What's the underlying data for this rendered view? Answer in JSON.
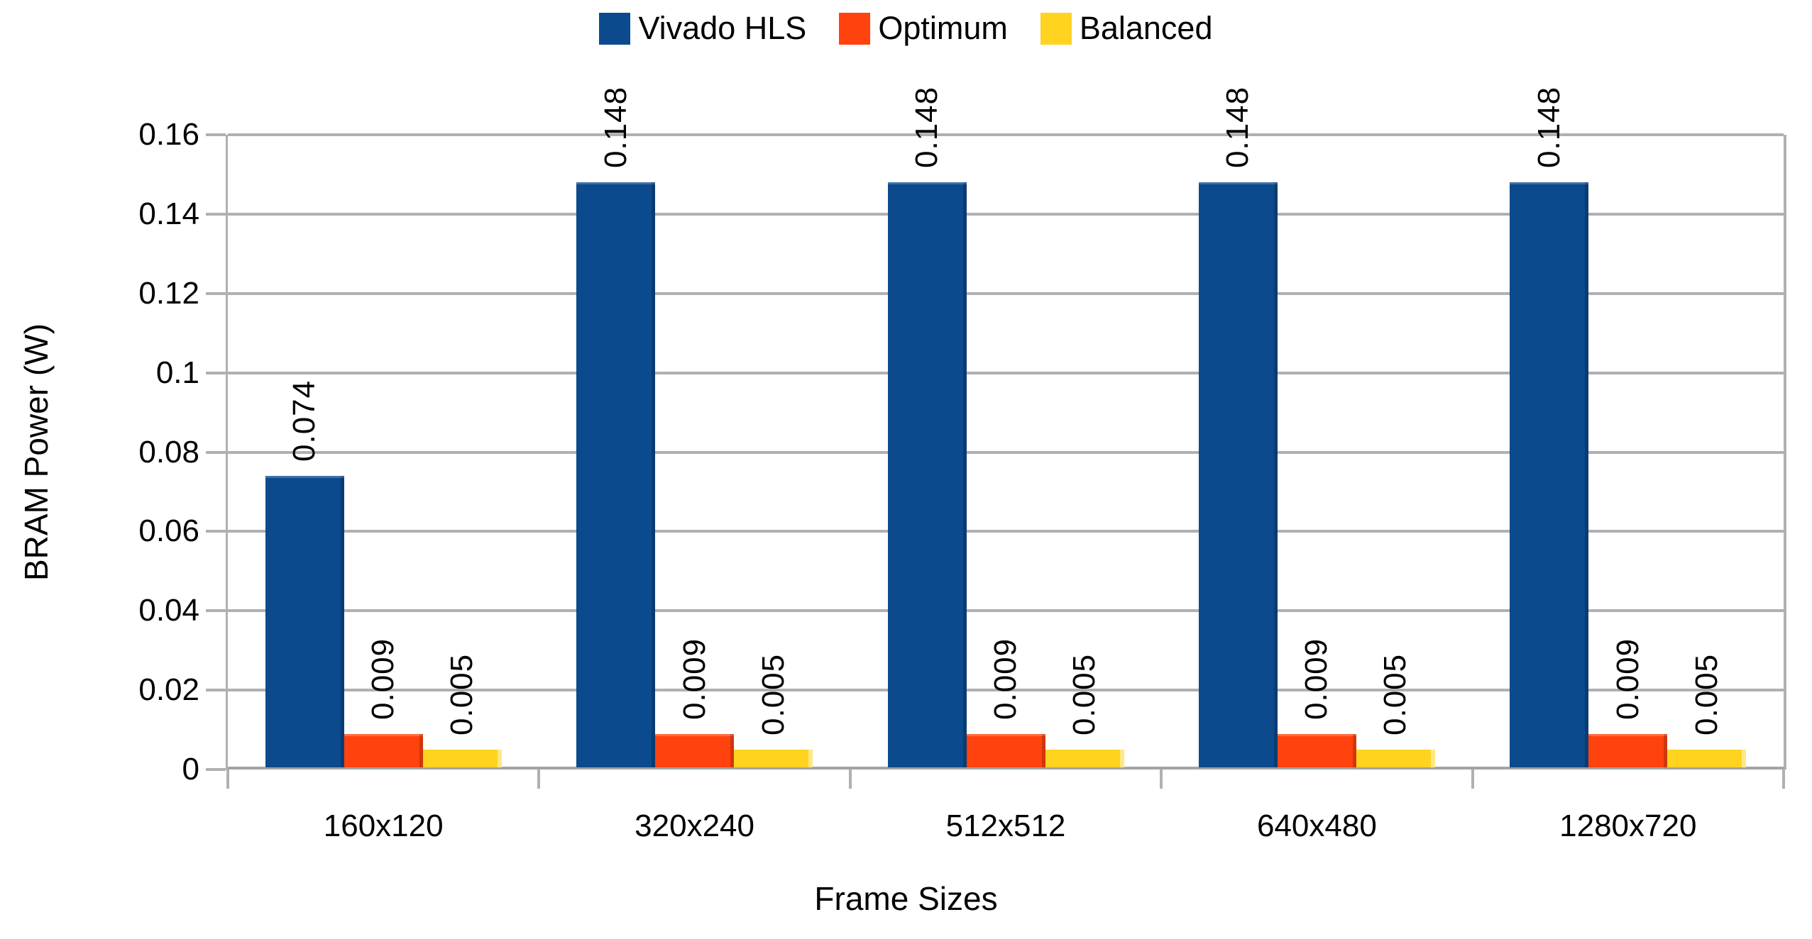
{
  "chart_data": {
    "type": "bar",
    "title": "",
    "categories": [
      "160x120",
      "320x240",
      "512x512",
      "640x480",
      "1280x720"
    ],
    "series": [
      {
        "name": "Vivado HLS",
        "color": "#0b4a8d",
        "values": [
          0.074,
          0.148,
          0.148,
          0.148,
          0.148
        ],
        "labels": [
          "0.074",
          "0.148",
          "0.148",
          "0.148",
          "0.148"
        ]
      },
      {
        "name": "Optimum",
        "color": "#ff420e",
        "values": [
          0.009,
          0.009,
          0.009,
          0.009,
          0.009
        ],
        "labels": [
          "0.009",
          "0.009",
          "0.009",
          "0.009",
          "0.009"
        ]
      },
      {
        "name": "Balanced",
        "color": "#ffd320",
        "values": [
          0.005,
          0.005,
          0.005,
          0.005,
          0.005
        ],
        "labels": [
          "0.005",
          "0.005",
          "0.005",
          "0.005",
          "0.005"
        ]
      }
    ],
    "xlabel": "Frame Sizes",
    "ylabel": "BRAM Power (W)",
    "ylim": [
      0,
      0.16
    ],
    "ytick_step": 0.02,
    "yticks": [
      "0",
      "0.02",
      "0.04",
      "0.06",
      "0.08",
      "0.1",
      "0.12",
      "0.14",
      "0.16"
    ],
    "grid": true,
    "legend_position": "top",
    "data_label_rotation_deg": 90,
    "grid_color": "#b0b0b0",
    "text_color": "#000000",
    "background_color": "#ffffff"
  }
}
